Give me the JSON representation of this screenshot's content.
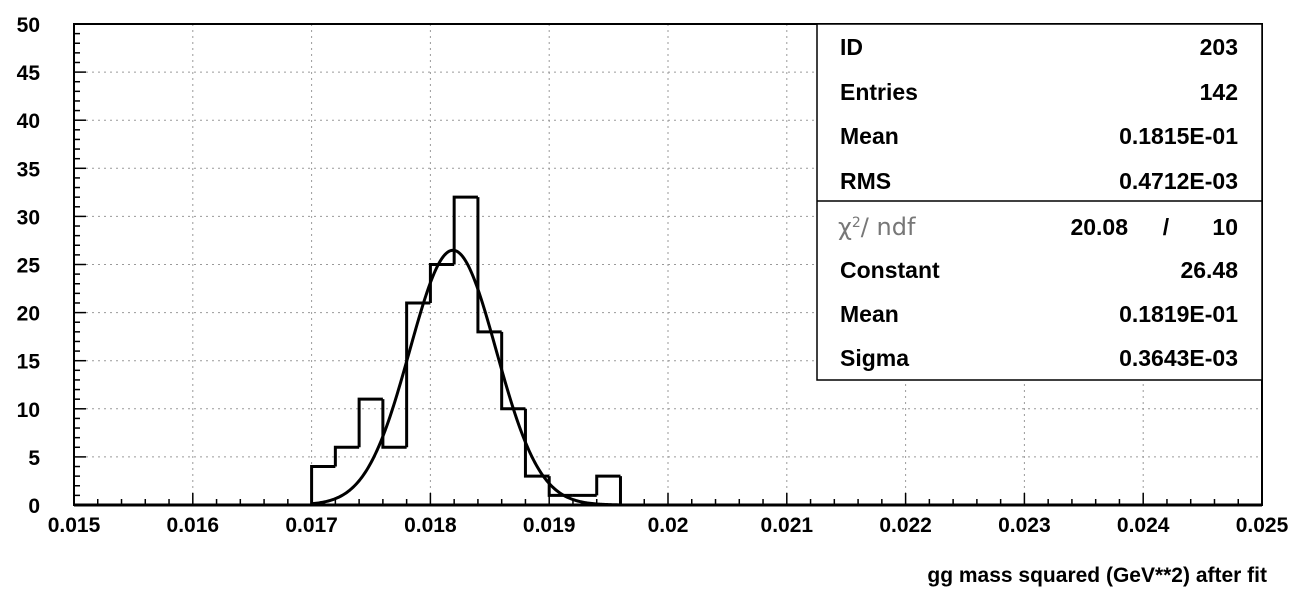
{
  "chart_data": {
    "type": "bar",
    "histogram": true,
    "x_label": "gg  mass squared (GeV**2)  after fit",
    "xlim": [
      0.015,
      0.025
    ],
    "ylim": [
      0,
      50
    ],
    "x_ticks": [
      "0.015",
      "0.016",
      "0.017",
      "0.018",
      "0.019",
      "0.02",
      "0.021",
      "0.022",
      "0.023",
      "0.024",
      "0.025"
    ],
    "y_ticks": [
      "0",
      "5",
      "10",
      "15",
      "20",
      "25",
      "30",
      "35",
      "40",
      "45",
      "50"
    ],
    "grid": true,
    "bin_width": 0.0002,
    "bins": [
      {
        "x": 0.017,
        "y": 4
      },
      {
        "x": 0.0172,
        "y": 6
      },
      {
        "x": 0.0174,
        "y": 11
      },
      {
        "x": 0.0176,
        "y": 6
      },
      {
        "x": 0.0178,
        "y": 21
      },
      {
        "x": 0.018,
        "y": 25
      },
      {
        "x": 0.0182,
        "y": 32
      },
      {
        "x": 0.0184,
        "y": 18
      },
      {
        "x": 0.0186,
        "y": 10
      },
      {
        "x": 0.0188,
        "y": 3
      },
      {
        "x": 0.019,
        "y": 1
      },
      {
        "x": 0.0192,
        "y": 1
      },
      {
        "x": 0.0194,
        "y": 3
      }
    ],
    "fit": {
      "function": "gaussian",
      "constant": 26.48,
      "mean": 0.01819,
      "sigma": 0.0003643
    },
    "stats_box": {
      "placement": "top-right",
      "rows": [
        {
          "label": "ID",
          "value": "203"
        },
        {
          "label": "Entries",
          "value": "142"
        },
        {
          "label": "Mean",
          "value": "0.1815E-01"
        },
        {
          "label": "RMS",
          "value": "0.4712E-03"
        }
      ],
      "chi2": {
        "symbol": "χ",
        "sup": "2",
        "rest": "/ ndf",
        "value": "20.08",
        "sep": "/",
        "ndf": "10"
      },
      "fit_rows": [
        {
          "label": "Constant",
          "value": "26.48"
        },
        {
          "label": "Mean",
          "value": "0.1819E-01"
        },
        {
          "label": "Sigma",
          "value": "0.3643E-03"
        }
      ]
    }
  }
}
